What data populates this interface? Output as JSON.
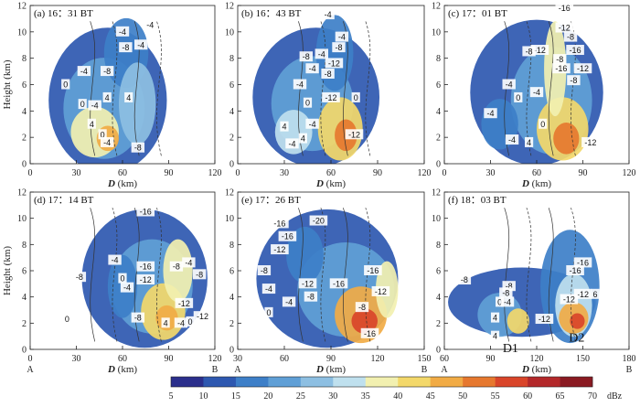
{
  "figure": {
    "colorbar": {
      "levels": [
        5,
        10,
        15,
        20,
        25,
        30,
        35,
        40,
        45,
        50,
        55,
        60,
        65,
        70
      ],
      "unit": "dBz",
      "colors": [
        "#2b2f8c",
        "#2e58b0",
        "#3d7fc8",
        "#5f9fd6",
        "#8dbfe2",
        "#bfe0ee",
        "#f2f0b0",
        "#f3d86a",
        "#f1ab45",
        "#e6782f",
        "#d9452a",
        "#b3282a",
        "#8a1a22"
      ]
    }
  },
  "chart_data": [
    {
      "type": "contour",
      "title": "(a) 16：31 BT",
      "xlabel": "D (km)",
      "ylabel": "Height (km)",
      "xlim": [
        0,
        120
      ],
      "ylim": [
        0,
        12
      ],
      "xticks": [
        "0",
        "30",
        "60",
        "90",
        "120"
      ],
      "yticks": [
        "0",
        "2",
        "4",
        "6",
        "8",
        "10",
        "12"
      ],
      "end_labels": [],
      "contour_labels": [
        {
          "text": "-4",
          "x": 78,
          "y": 10.5
        },
        {
          "text": "-4",
          "x": 60,
          "y": 10.0
        },
        {
          "text": "-4",
          "x": 72,
          "y": 9.0
        },
        {
          "text": "-8",
          "x": 62,
          "y": 8.8
        },
        {
          "text": "-4",
          "x": 35,
          "y": 7.0
        },
        {
          "text": "-8",
          "x": 50,
          "y": 7.0
        },
        {
          "text": "0",
          "x": 23,
          "y": 6.0
        },
        {
          "text": "4",
          "x": 50,
          "y": 5.0
        },
        {
          "text": "0",
          "x": 34,
          "y": 4.5
        },
        {
          "text": "-4",
          "x": 42,
          "y": 4.4
        },
        {
          "text": "4",
          "x": 40,
          "y": 3.0
        },
        {
          "text": "0",
          "x": 47,
          "y": 2.2
        },
        {
          "text": "-4",
          "x": 50,
          "y": 1.6
        },
        {
          "text": "-8",
          "x": 70,
          "y": 1.2
        },
        {
          "text": "4",
          "x": 64,
          "y": 5.0
        }
      ]
    },
    {
      "type": "contour",
      "title": "(b) 16：43 BT",
      "xlabel": "D (km)",
      "ylabel": "",
      "xlim": [
        0,
        120
      ],
      "ylim": [
        0,
        12
      ],
      "xticks": [
        "0",
        "30",
        "60",
        "90",
        "120"
      ],
      "yticks": [
        "0",
        "2",
        "4",
        "6",
        "8",
        "10",
        "12"
      ],
      "end_labels": [],
      "contour_labels": [
        {
          "text": "-4",
          "x": 58,
          "y": 11.3
        },
        {
          "text": "-4",
          "x": 67,
          "y": 9.6
        },
        {
          "text": "-8",
          "x": 65,
          "y": 8.8
        },
        {
          "text": "-4",
          "x": 54,
          "y": 8.3
        },
        {
          "text": "-8",
          "x": 44,
          "y": 8.1
        },
        {
          "text": "-4",
          "x": 48,
          "y": 7.2
        },
        {
          "text": "-8",
          "x": 58,
          "y": 6.8
        },
        {
          "text": "-12",
          "x": 62,
          "y": 7.6
        },
        {
          "text": "-4",
          "x": 40,
          "y": 6.0
        },
        {
          "text": "-12",
          "x": 60,
          "y": 5.0
        },
        {
          "text": "0",
          "x": 76,
          "y": 5.0
        },
        {
          "text": "0",
          "x": 45,
          "y": 4.6
        },
        {
          "text": "4",
          "x": 30,
          "y": 2.8
        },
        {
          "text": "-4",
          "x": 48,
          "y": 3.0
        },
        {
          "text": "4",
          "x": 42,
          "y": 1.9
        },
        {
          "text": "-12",
          "x": 75,
          "y": 2.2
        },
        {
          "text": "-4",
          "x": 35,
          "y": 1.5
        }
      ]
    },
    {
      "type": "contour",
      "title": "(c) 17：01 BT",
      "xlabel": "D (km)",
      "ylabel": "",
      "xlim": [
        0,
        120
      ],
      "ylim": [
        0,
        12
      ],
      "xticks": [
        "0",
        "30",
        "60",
        "90",
        "120"
      ],
      "yticks": [
        "0",
        "2",
        "4",
        "6",
        "8",
        "10",
        "12"
      ],
      "end_labels": [],
      "contour_labels": [
        {
          "text": "-16",
          "x": 78,
          "y": 11.8
        },
        {
          "text": "-12",
          "x": 78,
          "y": 10.3
        },
        {
          "text": "-8",
          "x": 82,
          "y": 9.6
        },
        {
          "text": "-12",
          "x": 62,
          "y": 8.6
        },
        {
          "text": "-16",
          "x": 85,
          "y": 8.6
        },
        {
          "text": "-8",
          "x": 55,
          "y": 8.5
        },
        {
          "text": "-8",
          "x": 75,
          "y": 7.9
        },
        {
          "text": "-16",
          "x": 76,
          "y": 7.2
        },
        {
          "text": "-12",
          "x": 90,
          "y": 7.2
        },
        {
          "text": "-8",
          "x": 84,
          "y": 6.3
        },
        {
          "text": "-4",
          "x": 42,
          "y": 6.0
        },
        {
          "text": "0",
          "x": 48,
          "y": 5.0
        },
        {
          "text": "-4",
          "x": 60,
          "y": 5.4
        },
        {
          "text": "-4",
          "x": 30,
          "y": 3.8
        },
        {
          "text": "0",
          "x": 64,
          "y": 3.0
        },
        {
          "text": "-4",
          "x": 44,
          "y": 1.8
        },
        {
          "text": "4",
          "x": 55,
          "y": 1.6
        },
        {
          "text": "-12",
          "x": 95,
          "y": 1.6
        }
      ]
    },
    {
      "type": "contour",
      "title": "(d) 17：14 BT",
      "xlabel": "D (km)",
      "ylabel": "Height (km)",
      "xlim": [
        0,
        120
      ],
      "ylim": [
        0,
        12
      ],
      "xticks": [
        "0",
        "30",
        "60",
        "90",
        "120"
      ],
      "yticks": [
        "0",
        "2",
        "4",
        "6",
        "8",
        "10",
        "12"
      ],
      "end_labels": [
        "A",
        "B"
      ],
      "contour_labels": [
        {
          "text": "-16",
          "x": 75,
          "y": 10.5
        },
        {
          "text": "-4",
          "x": 55,
          "y": 6.8
        },
        {
          "text": "-4",
          "x": 103,
          "y": 6.6
        },
        {
          "text": "-16",
          "x": 75,
          "y": 6.3
        },
        {
          "text": "-8",
          "x": 32,
          "y": 5.5
        },
        {
          "text": "-12",
          "x": 75,
          "y": 5.3
        },
        {
          "text": "-8",
          "x": 95,
          "y": 6.3
        },
        {
          "text": "0",
          "x": 60,
          "y": 5.4
        },
        {
          "text": "-8",
          "x": 110,
          "y": 5.7
        },
        {
          "text": "-4",
          "x": 63,
          "y": 4.7
        },
        {
          "text": "-12",
          "x": 100,
          "y": 3.5
        },
        {
          "text": "-8",
          "x": 70,
          "y": 2.4
        },
        {
          "text": "-12",
          "x": 112,
          "y": 2.5
        },
        {
          "text": "4",
          "x": 88,
          "y": 2.0
        },
        {
          "text": "-4",
          "x": 98,
          "y": 2.0
        },
        {
          "text": "0",
          "x": 104,
          "y": 2.1
        },
        {
          "text": "0",
          "x": 24,
          "y": 2.3
        }
      ]
    },
    {
      "type": "contour",
      "title": "(e) 17：26 BT",
      "xlabel": "D (km)",
      "ylabel": "",
      "xlim": [
        30,
        150
      ],
      "ylim": [
        0,
        12
      ],
      "xticks": [
        "30",
        "60",
        "90",
        "120",
        "150"
      ],
      "yticks": [
        "0",
        "2",
        "4",
        "6",
        "8",
        "10",
        "12"
      ],
      "end_labels": [
        "A",
        "B"
      ],
      "contour_labels": [
        {
          "text": "-16",
          "x": 57,
          "y": 9.6
        },
        {
          "text": "-20",
          "x": 82,
          "y": 9.8
        },
        {
          "text": "-16",
          "x": 62,
          "y": 8.6
        },
        {
          "text": "-12",
          "x": 57,
          "y": 7.6
        },
        {
          "text": "-8",
          "x": 47,
          "y": 6.0
        },
        {
          "text": "-16",
          "x": 117,
          "y": 6.0
        },
        {
          "text": "-4",
          "x": 50,
          "y": 4.6
        },
        {
          "text": "-12",
          "x": 75,
          "y": 5.0
        },
        {
          "text": "-16",
          "x": 95,
          "y": 5.0
        },
        {
          "text": "-8",
          "x": 77,
          "y": 4.0
        },
        {
          "text": "-12",
          "x": 122,
          "y": 4.4
        },
        {
          "text": "-4",
          "x": 63,
          "y": 3.6
        },
        {
          "text": "-8",
          "x": 110,
          "y": 3.2
        },
        {
          "text": "0",
          "x": 50,
          "y": 2.8
        },
        {
          "text": "-16",
          "x": 115,
          "y": 1.2
        }
      ]
    },
    {
      "type": "contour",
      "title": "(f) 18：03 BT",
      "xlabel": "D (km)",
      "ylabel": "",
      "xlim": [
        60,
        180
      ],
      "ylim": [
        0,
        12
      ],
      "xticks": [
        "60",
        "90",
        "120",
        "150",
        "180"
      ],
      "yticks": [
        "0",
        "2",
        "4",
        "6",
        "8",
        "10",
        "12"
      ],
      "end_labels": [
        "A",
        "B"
      ],
      "contour_labels": [
        {
          "text": "-16",
          "x": 150,
          "y": 6.6
        },
        {
          "text": "-16",
          "x": 145,
          "y": 6.0
        },
        {
          "text": "-8",
          "x": 73,
          "y": 5.3
        },
        {
          "text": "-8",
          "x": 102,
          "y": 4.8
        },
        {
          "text": "-8",
          "x": 100,
          "y": 4.3
        },
        {
          "text": "0",
          "x": 96,
          "y": 3.6
        },
        {
          "text": "-4",
          "x": 101,
          "y": 3.6
        },
        {
          "text": "-12",
          "x": 150,
          "y": 4.2
        },
        {
          "text": "-12",
          "x": 141,
          "y": 3.8
        },
        {
          "text": "6",
          "x": 158,
          "y": 4.2
        },
        {
          "text": "4",
          "x": 93,
          "y": 2.4
        },
        {
          "text": "-12",
          "x": 125,
          "y": 2.3
        },
        {
          "text": "4",
          "x": 93,
          "y": 1.0
        }
      ],
      "markers": [
        {
          "text": "D1",
          "x": 103,
          "y": -0.2
        },
        {
          "text": "D2",
          "x": 146,
          "y": 0.6
        }
      ]
    }
  ]
}
